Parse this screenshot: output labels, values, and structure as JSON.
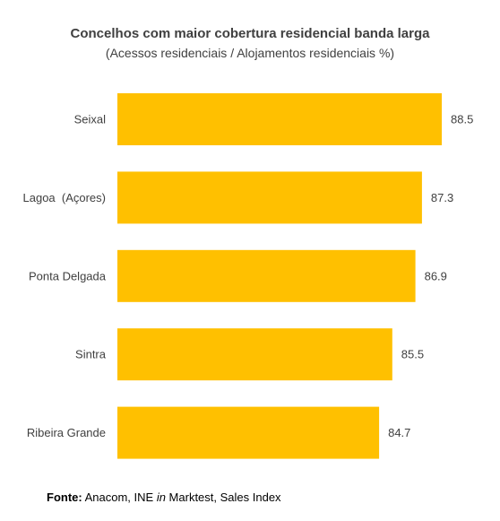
{
  "chart_data": {
    "type": "bar",
    "orientation": "horizontal",
    "title": "Concelhos com maior cobertura residencial banda larga",
    "subtitle": "(Acessos residenciais / Alojamentos residenciais %)",
    "categories": [
      "Seixal",
      "Lagoa  (Açores)",
      "Ponta Delgada",
      "Sintra",
      "Ribeira Grande"
    ],
    "values": [
      88.5,
      87.3,
      86.9,
      85.5,
      84.7
    ],
    "value_labels": [
      "88.5",
      "87.3",
      "86.9",
      "85.5",
      "84.7"
    ],
    "bar_color": "#FFC000",
    "xlabel": "",
    "ylabel": "",
    "grid": false,
    "legend": "none"
  },
  "source": {
    "label": "Fonte:",
    "text_before": " Anacom, INE ",
    "italic": "in",
    "text_after": " Marktest, Sales Index"
  }
}
